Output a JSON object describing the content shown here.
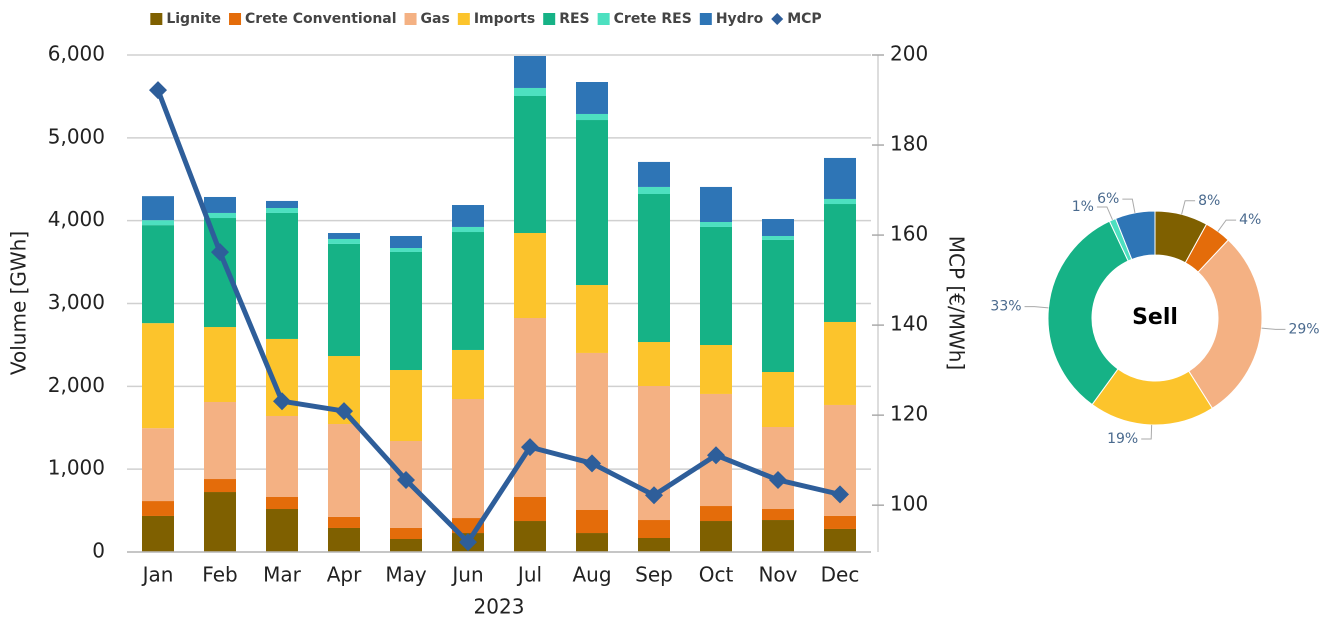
{
  "chart_data": [
    {
      "type": "bar",
      "stacked": true,
      "categories": [
        "Jan",
        "Feb",
        "Mar",
        "Apr",
        "May",
        "Jun",
        "Jul",
        "Aug",
        "Sep",
        "Oct",
        "Nov",
        "Dec"
      ],
      "xlabel": "2023",
      "ylabel": "Volume [GWh]",
      "y2label": "MCP [€/MWh]",
      "series": [
        {
          "name": "Lignite",
          "color": "#7f6000",
          "values": [
            435,
            724,
            519,
            290,
            157,
            229,
            374,
            229,
            169,
            374,
            386,
            278
          ]
        },
        {
          "name": "Crete Conventional",
          "color": "#e46c0a",
          "values": [
            180,
            157,
            145,
            133,
            133,
            181,
            290,
            278,
            217,
            181,
            133,
            157
          ]
        },
        {
          "name": "Gas",
          "color": "#f4b183",
          "values": [
            880,
            930,
            978,
            1122,
            1050,
            1437,
            2161,
            1896,
            1618,
            1353,
            990,
            1340
          ]
        },
        {
          "name": "Imports",
          "color": "#fcc42c",
          "values": [
            1268,
            905,
            930,
            821,
            857,
            592,
            1026,
            820,
            531,
            591,
            664,
            1002
          ]
        },
        {
          "name": "RES",
          "color": "#16b286",
          "values": [
            1183,
            1316,
            1521,
            1353,
            1425,
            1424,
            1654,
            1992,
            1787,
            1425,
            1594,
            1424
          ]
        },
        {
          "name": "Crete RES",
          "color": "#4de0c0",
          "values": [
            60,
            61,
            60,
            60,
            48,
            61,
            97,
            73,
            85,
            60,
            48,
            61
          ]
        },
        {
          "name": "Hydro",
          "color": "#2e75b6",
          "values": [
            290,
            193,
            85,
            72,
            145,
            265,
            386,
            386,
            302,
            423,
            205,
            495
          ]
        },
        {
          "name": "MCP",
          "color": "#2e5e9a",
          "type": "line",
          "axis": "y2",
          "values": [
            192.2,
            156.2,
            123.1,
            120.9,
            105.6,
            91.8,
            112.9,
            109.3,
            102.2,
            111.1,
            105.6,
            102.4
          ]
        }
      ],
      "ylim": [
        0,
        6000
      ],
      "yticks": [
        0,
        {
          "value": 1000,
          "label": "1,000"
        },
        {
          "value": 2000,
          "label": "2,000"
        },
        {
          "value": 3000,
          "label": "3,000"
        },
        {
          "value": 4000,
          "label": "4,000"
        },
        {
          "value": 5000,
          "label": "5,000"
        },
        {
          "value": 6000,
          "label": "6,000"
        }
      ],
      "y2lim": [
        89.6,
        200
      ],
      "y2ticks": [
        100,
        120,
        140,
        160,
        180,
        200
      ],
      "grid": true,
      "legend": "top"
    },
    {
      "type": "donut",
      "title": "Sell",
      "categories": [
        "Lignite",
        "Crete Conventional",
        "Gas",
        "Imports",
        "RES",
        "Crete RES",
        "Hydro"
      ],
      "colors": [
        "#7f6000",
        "#e46c0a",
        "#f4b183",
        "#fcc42c",
        "#16b286",
        "#4de0c0",
        "#2e75b6"
      ],
      "values": [
        8,
        4,
        29,
        19,
        33,
        1,
        6
      ],
      "value_labels": [
        "8%",
        "4%",
        "29%",
        "19%",
        "33%",
        "1%",
        "6%"
      ]
    }
  ]
}
